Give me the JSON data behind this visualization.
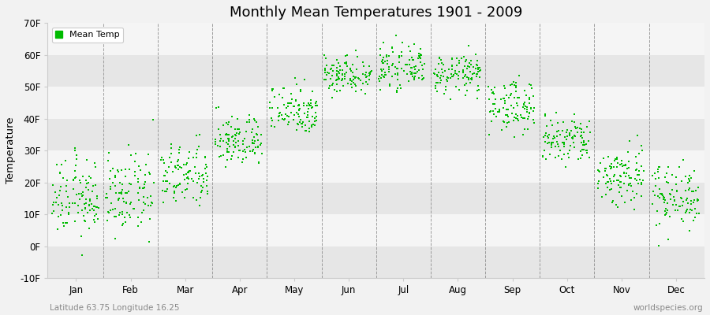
{
  "title": "Monthly Mean Temperatures 1901 - 2009",
  "ylabel": "Temperature",
  "xlabel_labels": [
    "Jan",
    "Feb",
    "Mar",
    "Apr",
    "May",
    "Jun",
    "Jul",
    "Aug",
    "Sep",
    "Oct",
    "Nov",
    "Dec"
  ],
  "subtitle_left": "Latitude 63.75 Longitude 16.25",
  "subtitle_right": "worldspecies.org",
  "legend_label": "Mean Temp",
  "dot_color": "#00bb00",
  "background_color": "#f2f2f2",
  "plot_bg_color": "#ffffff",
  "band_color_light": "#e6e6e6",
  "band_color_white": "#f5f5f5",
  "ylim": [
    -10,
    70
  ],
  "yticks": [
    -10,
    0,
    10,
    20,
    30,
    40,
    50,
    60,
    70
  ],
  "ytick_labels": [
    "-10F",
    "0F",
    "10F",
    "20F",
    "30F",
    "40F",
    "50F",
    "60F",
    "70F"
  ],
  "n_years": 109,
  "monthly_means_F": [
    15,
    16,
    22,
    33,
    43,
    54,
    56,
    54,
    44,
    33,
    22,
    16
  ],
  "monthly_stds_F": [
    6,
    6,
    5,
    4,
    4,
    3,
    3,
    3,
    4,
    4,
    5,
    5
  ]
}
